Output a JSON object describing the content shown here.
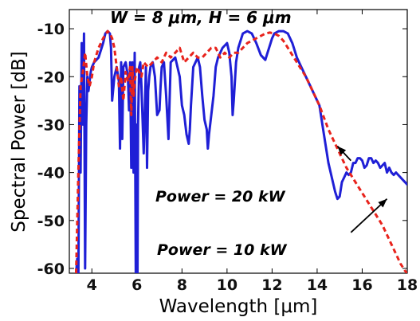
{
  "chart_data": {
    "type": "line",
    "title": "W = 8 μm, H = 6 μm",
    "xlabel": "Wavelength [μm]",
    "ylabel": "Spectral Power [dB]",
    "xlim": [
      3.0,
      18.0
    ],
    "ylim": [
      -61,
      -6
    ],
    "xticks": [
      4,
      6,
      8,
      10,
      12,
      14,
      16,
      18
    ],
    "yticks": [
      -10,
      -20,
      -30,
      -40,
      -50,
      -60
    ],
    "grid": false,
    "legend": "none",
    "series": [
      {
        "name": "Power = 20 kW",
        "color": "#1f1fd6",
        "style": "solid",
        "x": [
          3.3,
          3.35,
          3.4,
          3.45,
          3.5,
          3.55,
          3.6,
          3.65,
          3.7,
          3.75,
          3.8,
          3.85,
          3.9,
          3.95,
          4.0,
          4.1,
          4.3,
          4.5,
          4.6,
          4.7,
          4.8,
          4.85,
          4.9,
          5.0,
          5.1,
          5.2,
          5.25,
          5.3,
          5.35,
          5.4,
          5.5,
          5.6,
          5.65,
          5.7,
          5.75,
          5.8,
          5.85,
          5.9,
          5.95,
          6.0,
          6.02,
          6.05,
          6.1,
          6.15,
          6.2,
          6.3,
          6.4,
          6.45,
          6.5,
          6.55,
          6.6,
          6.7,
          6.8,
          6.9,
          7.0,
          7.05,
          7.1,
          7.2,
          7.3,
          7.4,
          7.5,
          7.7,
          7.9,
          8.0,
          8.1,
          8.2,
          8.3,
          8.35,
          8.4,
          8.5,
          8.6,
          8.7,
          8.8,
          8.9,
          9.0,
          9.1,
          9.15,
          9.2,
          9.3,
          9.4,
          9.5,
          9.6,
          9.8,
          10.0,
          10.1,
          10.2,
          10.25,
          10.3,
          10.4,
          10.5,
          10.7,
          10.9,
          11.1,
          11.3,
          11.5,
          11.7,
          11.8,
          11.9,
          12.0,
          12.1,
          12.3,
          12.5,
          12.7,
          12.9,
          13.1,
          13.3,
          13.5,
          13.7,
          13.9,
          14.1,
          14.3,
          14.5,
          14.7,
          14.8,
          14.9,
          15.0,
          15.1,
          15.2,
          15.3,
          15.4,
          15.5,
          15.6,
          15.7,
          15.8,
          15.9,
          16.0,
          16.1,
          16.2,
          16.3,
          16.4,
          16.5,
          16.6,
          16.7,
          16.8,
          16.9,
          17.0,
          17.1,
          17.2,
          17.3,
          17.4,
          17.5,
          17.6,
          17.7,
          17.8,
          17.9,
          18.0
        ],
        "y": [
          -61,
          -58,
          -63,
          -22,
          -40,
          -13,
          -30,
          -11,
          -60,
          -30,
          -20,
          -23,
          -21,
          -19,
          -18,
          -17,
          -16,
          -13,
          -11,
          -10.5,
          -11,
          -14,
          -25,
          -20,
          -18,
          -21,
          -35,
          -17,
          -33,
          -18,
          -17,
          -20,
          -27,
          -17,
          -39,
          -17,
          -40,
          -15,
          -62,
          -30,
          -67,
          -30,
          -18,
          -17,
          -22,
          -36,
          -18,
          -39,
          -23,
          -20,
          -18,
          -17,
          -20,
          -28,
          -27,
          -22,
          -18,
          -17,
          -24,
          -33,
          -17,
          -16,
          -20,
          -26,
          -28,
          -32,
          -34,
          -31,
          -26,
          -18,
          -17,
          -16,
          -18,
          -24,
          -29,
          -31,
          -35,
          -32,
          -28,
          -24,
          -18,
          -16,
          -14,
          -13,
          -15,
          -20,
          -28,
          -25,
          -17,
          -14,
          -11,
          -10.5,
          -11,
          -13,
          -15.5,
          -16.5,
          -15,
          -13.5,
          -12,
          -11,
          -10.5,
          -10.5,
          -11,
          -13,
          -16,
          -18,
          -20,
          -22,
          -24,
          -26,
          -32,
          -38,
          -42,
          -44,
          -45.5,
          -45,
          -42,
          -41,
          -40,
          -40.5,
          -40,
          -38,
          -38,
          -37,
          -37,
          -37.5,
          -39,
          -38.5,
          -37,
          -37,
          -38,
          -37.5,
          -38,
          -39,
          -38.5,
          -38,
          -40,
          -39,
          -40,
          -40.5,
          -40,
          -40.5,
          -41,
          -41.5,
          -42,
          -42.5
        ]
      },
      {
        "name": "Power = 10 kW",
        "color": "#e8231c",
        "style": "dashed",
        "x": [
          3.3,
          3.4,
          3.5,
          3.6,
          3.7,
          3.8,
          3.9,
          4.0,
          4.1,
          4.3,
          4.5,
          4.7,
          4.8,
          4.9,
          5.0,
          5.1,
          5.2,
          5.3,
          5.4,
          5.5,
          5.6,
          5.7,
          5.75,
          5.8,
          5.85,
          5.9,
          6.0,
          6.1,
          6.2,
          6.3,
          6.5,
          6.7,
          6.9,
          7.1,
          7.3,
          7.5,
          7.7,
          7.9,
          8.1,
          8.3,
          8.5,
          8.7,
          8.9,
          9.1,
          9.3,
          9.5,
          9.7,
          9.9,
          10.1,
          10.3,
          10.5,
          10.7,
          10.9,
          11.1,
          11.3,
          11.5,
          11.7,
          11.9,
          12.1,
          12.3,
          12.5,
          12.7,
          12.9,
          13.1,
          13.3,
          13.5,
          13.7,
          13.9,
          14.1,
          14.3,
          14.5,
          14.7,
          14.9,
          15.1,
          15.3,
          15.5,
          15.7,
          15.9,
          16.1,
          16.3,
          16.5,
          16.7,
          16.9,
          17.1,
          17.3,
          17.5,
          17.7,
          17.9,
          18.0
        ],
        "y": [
          -61,
          -40,
          -22,
          -19,
          -15,
          -20,
          -22,
          -20,
          -17,
          -14,
          -12,
          -10.5,
          -11,
          -12,
          -14,
          -18,
          -22,
          -20,
          -25,
          -19,
          -21,
          -18,
          -28,
          -18,
          -24,
          -21,
          -18,
          -19,
          -20,
          -17,
          -18,
          -17,
          -16,
          -17,
          -15,
          -16,
          -15,
          -14,
          -17,
          -16,
          -15,
          -16,
          -16,
          -15,
          -14,
          -14,
          -16,
          -15,
          -16,
          -15,
          -15,
          -14,
          -13,
          -12.5,
          -12,
          -11.5,
          -11,
          -10.8,
          -11,
          -11.5,
          -12.5,
          -14,
          -15.5,
          -17,
          -18.5,
          -20,
          -22,
          -24,
          -26,
          -28.5,
          -31,
          -33,
          -35,
          -37,
          -39,
          -40.5,
          -42,
          -43.5,
          -45,
          -46.5,
          -48,
          -49.5,
          -51,
          -53,
          -55,
          -57,
          -59,
          -60.5,
          -61
        ]
      }
    ],
    "annotations": [
      {
        "text": "Power = 20 kW",
        "arrow_from": [
          15.5,
          -37.5
        ],
        "arrow_to": [
          14.9,
          -34.5
        ]
      },
      {
        "text": "Power = 10 kW",
        "arrow_from": [
          15.5,
          -52.5
        ],
        "arrow_to": [
          17.1,
          -45.5
        ]
      }
    ]
  }
}
